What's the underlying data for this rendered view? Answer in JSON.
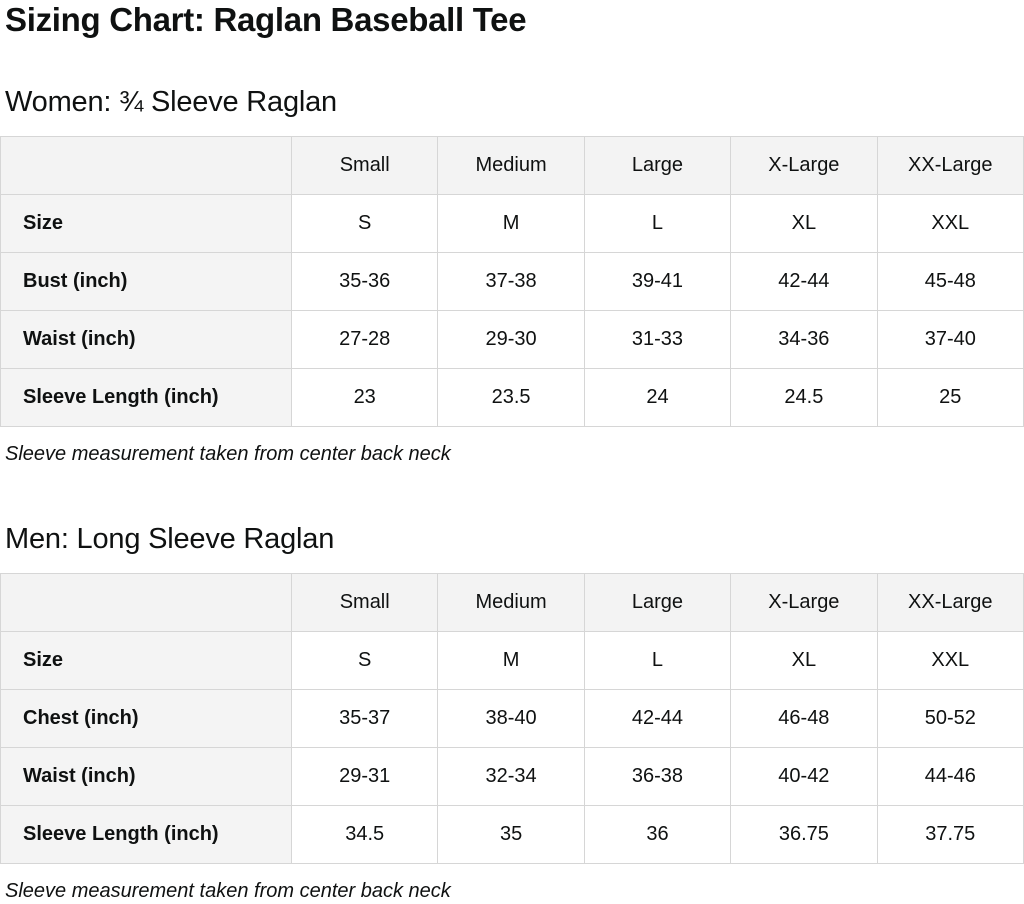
{
  "page": {
    "title": "Sizing Chart: Raglan Baseball Tee"
  },
  "colors": {
    "text": "#0f1111",
    "table_border": "#d6d6d6",
    "header_background": "#f3f3f3",
    "label_background": "#f4f4f4",
    "cell_background": "#ffffff"
  },
  "chart_data": [
    {
      "type": "table",
      "title": "Women: ¾ Sleeve Raglan",
      "columns": [
        "Small",
        "Medium",
        "Large",
        "X-Large",
        "XX-Large"
      ],
      "rows": [
        {
          "label": "Size",
          "values": [
            "S",
            "M",
            "L",
            "XL",
            "XXL"
          ]
        },
        {
          "label": "Bust (inch)",
          "values": [
            "35-36",
            "37-38",
            "39-41",
            "42-44",
            "45-48"
          ]
        },
        {
          "label": "Waist (inch)",
          "values": [
            "27-28",
            "29-30",
            "31-33",
            "34-36",
            "37-40"
          ]
        },
        {
          "label": "Sleeve Length (inch)",
          "values": [
            "23",
            "23.5",
            "24",
            "24.5",
            "25"
          ]
        }
      ],
      "footnote": "Sleeve measurement taken from center back neck"
    },
    {
      "type": "table",
      "title": "Men: Long Sleeve Raglan",
      "columns": [
        "Small",
        "Medium",
        "Large",
        "X-Large",
        "XX-Large"
      ],
      "rows": [
        {
          "label": "Size",
          "values": [
            "S",
            "M",
            "L",
            "XL",
            "XXL"
          ]
        },
        {
          "label": "Chest (inch)",
          "values": [
            "35-37",
            "38-40",
            "42-44",
            "46-48",
            "50-52"
          ]
        },
        {
          "label": "Waist (inch)",
          "values": [
            "29-31",
            "32-34",
            "36-38",
            "40-42",
            "44-46"
          ]
        },
        {
          "label": "Sleeve Length (inch)",
          "values": [
            "34.5",
            "35",
            "36",
            "36.75",
            "37.75"
          ]
        }
      ],
      "footnote": "Sleeve measurement taken from center back neck"
    }
  ]
}
